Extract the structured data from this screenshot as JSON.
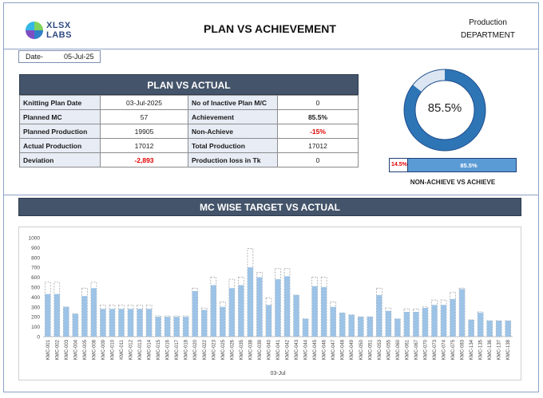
{
  "header": {
    "logo_line1": "XLSX",
    "logo_line2": "LABS",
    "title": "PLAN VS ACHIEVEMENT",
    "dept_line1": "Production",
    "dept_line2": "DEPARTMENT"
  },
  "date": {
    "label": "Date-",
    "value": "05-Jul-25"
  },
  "plan_vs_actual": {
    "title": "PLAN VS ACTUAL",
    "rows": [
      {
        "label": "Knitting Plan Date",
        "value": "03-Jul-2025",
        "label2": "No of Inactive Plan M/C",
        "value2": "0"
      },
      {
        "label": "Planned MC",
        "value": "57",
        "label2": "Achievement",
        "value2": "85.5%"
      },
      {
        "label": "Planned Production",
        "value": "19905",
        "label2": "Non-Achieve",
        "value2": "-15%"
      },
      {
        "label": "Actual Production",
        "value": "17012",
        "label2": "Total Production",
        "value2": "17012"
      },
      {
        "label": "Deviation",
        "value": "-2,893",
        "label2": "Production loss in Tk",
        "value2": "0"
      }
    ]
  },
  "gauge": {
    "value_text": "85.5%",
    "fraction": 0.855,
    "color": "#2e75b6",
    "track_color": "#dce6f2"
  },
  "progress": {
    "non_achieve_text": "14.5%",
    "achieve_text": "85.5%",
    "non_achieve_fraction": 0.145,
    "caption": "NON-ACHIEVE VS ACHIEVE"
  },
  "mc_section": {
    "title": "MC WISE TARGET VS ACTUAL"
  },
  "chart_data": {
    "type": "bar",
    "xlabel": "03-Jul",
    "ylim": [
      0,
      1000
    ],
    "yticks": [
      0,
      100,
      200,
      300,
      400,
      500,
      600,
      700,
      800,
      900,
      1000
    ],
    "categories": [
      "KMC-001",
      "KMC-002",
      "KMC-003",
      "KMC-004",
      "KMC-005",
      "KMC-008",
      "KMC-009",
      "KMC-010",
      "KMC-011",
      "KMC-012",
      "KMC-013",
      "KMC-014",
      "KMC-015",
      "KMC-016",
      "KMC-017",
      "KMC-018",
      "KMC-020",
      "KMC-022",
      "KMC-023",
      "KMC-025",
      "KMC-026",
      "KMC-035",
      "KMC-038",
      "KMC-039",
      "KMC-040",
      "KMC-041",
      "KMC-042",
      "KMC-043",
      "KMC-044",
      "KMC-045",
      "KMC-046",
      "KMC-047",
      "KMC-048",
      "KMC-049",
      "KMC-050",
      "KMC-051",
      "KMC-053",
      "KMC-055",
      "KMC-060",
      "KMC-061",
      "KMC-067",
      "KMC-070",
      "KMC-073",
      "KMC-074",
      "KMC-075",
      "KMC-083",
      "KMC-134",
      "KMC-135",
      "KMC-136",
      "KMC-137",
      "KMC-138"
    ],
    "series": [
      {
        "values": [
          430,
          430,
          300,
          230,
          410,
          490,
          280,
          280,
          280,
          280,
          280,
          280,
          200,
          200,
          200,
          200,
          460,
          270,
          520,
          300,
          490,
          520,
          700,
          600,
          320,
          580,
          610,
          420,
          180,
          510,
          500,
          300,
          240,
          220,
          200,
          200,
          420,
          260,
          180,
          250,
          250,
          290,
          320,
          320,
          380,
          480,
          170,
          240,
          160,
          160,
          160
        ],
        "color": "#9dc3e6"
      },
      {
        "values": [
          550,
          550,
          300,
          230,
          490,
          550,
          320,
          320,
          320,
          320,
          320,
          320,
          210,
          210,
          210,
          210,
          490,
          290,
          600,
          350,
          580,
          600,
          890,
          650,
          390,
          690,
          690,
          420,
          180,
          600,
          600,
          350,
          240,
          220,
          200,
          200,
          490,
          290,
          180,
          280,
          280,
          300,
          370,
          370,
          450,
          490,
          170,
          250,
          160,
          160,
          160
        ],
        "color": "#c0c0c0"
      }
    ]
  }
}
